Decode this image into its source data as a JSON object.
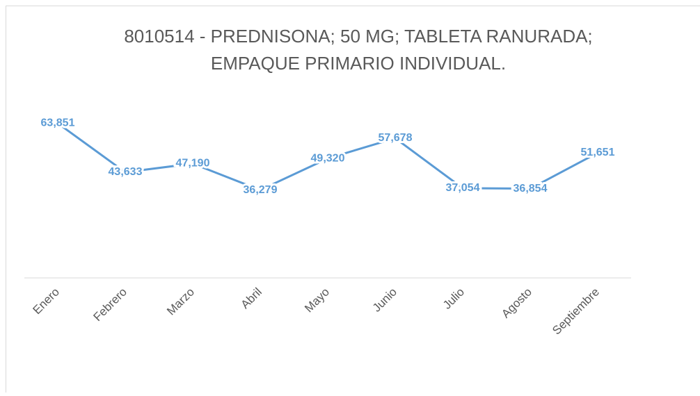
{
  "chart_data": {
    "type": "line",
    "title": [
      "8010514 - PREDNISONA; 50 MG; TABLETA RANURADA;",
      "EMPAQUE PRIMARIO INDIVIDUAL."
    ],
    "categories": [
      "Enero",
      "Febrero",
      "Marzo",
      "Abril",
      "Mayo",
      "Junio",
      "Julio",
      "Agosto",
      "Septiembre"
    ],
    "series": [
      {
        "color": "#5b9bd5",
        "values": [
          63851,
          43633,
          47190,
          36279,
          49320,
          57678,
          37054,
          36854,
          51651
        ],
        "value_labels": [
          "63,851",
          "43,633",
          "47,190",
          "36,279",
          "49,320",
          "57,678",
          "37,054",
          "36,854",
          "51,651"
        ]
      }
    ],
    "ylim": [
      0,
      70000
    ]
  }
}
